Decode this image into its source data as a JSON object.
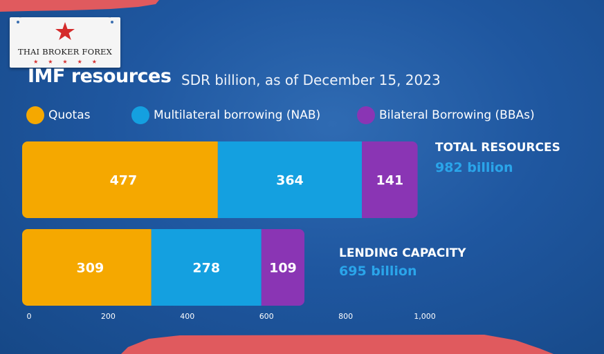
{
  "brand": {
    "name": "THAI BROKER FOREX",
    "star_color": "#d42b2b"
  },
  "header": {
    "title": "IMF resources",
    "subtitle": "SDR billion, as of December 15, 2023"
  },
  "legend": [
    {
      "label": "Quotas",
      "color": "#f5a800"
    },
    {
      "label": "Multilateral borrowing (NAB)",
      "color": "#14a0e0"
    },
    {
      "label": "Bilateral Borrowing (BBAs)",
      "color": "#8a35b4"
    }
  ],
  "bar_labels": {
    "total": {
      "title": "TOTAL RESOURCES",
      "value": "982 billion"
    },
    "lending": {
      "title": "LENDING CAPACITY",
      "value": "695 billion"
    }
  },
  "chart_data": {
    "type": "bar",
    "orientation": "horizontal",
    "stacked": true,
    "categories": [
      "Total resources",
      "Lending capacity"
    ],
    "series": [
      {
        "name": "Quotas",
        "values": [
          477,
          309
        ]
      },
      {
        "name": "Multilateral borrowing (NAB)",
        "values": [
          364,
          278
        ]
      },
      {
        "name": "Bilateral Borrowing (BBAs)",
        "values": [
          141,
          109
        ]
      }
    ],
    "xlim": [
      0,
      1000
    ],
    "xticks": [
      0,
      200,
      400,
      600,
      800,
      1000
    ],
    "xtick_labels": [
      "0",
      "200",
      "400",
      "600",
      "800",
      "1,000"
    ],
    "grid": false,
    "legend_position": "top"
  }
}
